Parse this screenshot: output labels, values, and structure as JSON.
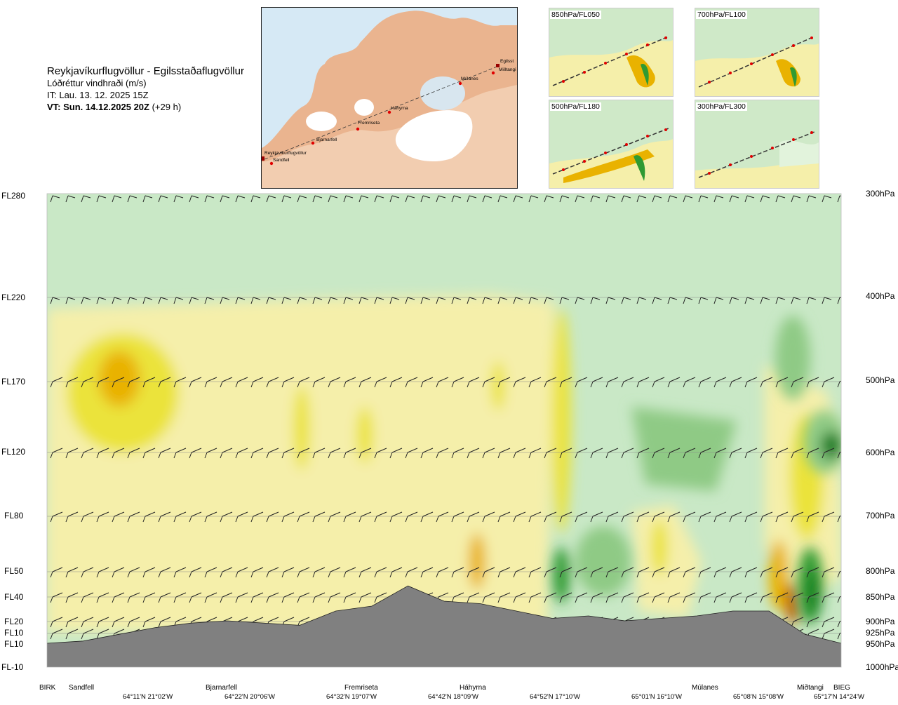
{
  "title": {
    "route": "Reykjavíkurflugvöllur - Egilsstaðaflugvöllur",
    "variable": "Lóðréttur vindhraði (m/s)",
    "it": "IT: Lau. 13. 12. 2025 15Z",
    "vt_bold": "VT: Sun. 14.12.2025 20Z",
    "vt_offset": "(+29 h)"
  },
  "map": {
    "labels": [
      "Egilsst",
      "Miðtangi",
      "Múlanes",
      "Háhyrna",
      "Fremriseta",
      "Bjarnarfell",
      "Reykjavíkurflugvöllur",
      "Sandfell"
    ]
  },
  "thumbnails": [
    {
      "label": "850hPa/FL050"
    },
    {
      "label": "700hPa/FL100"
    },
    {
      "label": "500hPa/FL180"
    },
    {
      "label": "300hPa/FL300"
    }
  ],
  "colors": {
    "terrain": "#808080",
    "positive_weak": "#f5efaa",
    "positive_mid": "#ebe33a",
    "positive_strong": "#e9b200",
    "positive_max": "#c46a10",
    "negative_weak": "#cfe9c8",
    "negative_mid": "#8fca85",
    "negative_strong": "#2f9a32",
    "negative_max": "#0e7a1c",
    "background": "#c9e8c6"
  },
  "chart_data": {
    "type": "heatmap",
    "title": "Lóðréttur vindhraði (m/s)",
    "flight_levels": [
      "FL280",
      "FL220",
      "FL170",
      "FL120",
      "FL80",
      "FL50",
      "FL40",
      "FL20",
      "FL10",
      "FL10",
      "FL-10"
    ],
    "pressure_levels": [
      "300hPa",
      "400hPa",
      "500hPa",
      "600hPa",
      "700hPa",
      "800hPa",
      "850hPa",
      "900hPa",
      "925hPa",
      "950hPa",
      "1000hPa"
    ],
    "pressure_hpa": [
      300,
      400,
      500,
      600,
      700,
      800,
      850,
      900,
      925,
      950,
      1000
    ],
    "waypoints": [
      "BIRK",
      "Sandfell",
      "Bjarnarfell",
      "Fremriseta",
      "Háhyrna",
      "Múlanes",
      "Miðtangi",
      "BIEG"
    ],
    "coordinates": [
      "64°11'N 21°02'W",
      "64°22'N 20°06'W",
      "64°32'N 19°07'W",
      "64°42'N 18°09'W",
      "64°52'N 17°10'W",
      "65°01'N 16°10'W",
      "65°08'N 15°08'W",
      "65°17'N 14°24'W"
    ],
    "series": [
      {
        "name": "terrain",
        "values": [
          950,
          945,
          930,
          915,
          905,
          900,
          905,
          910,
          880,
          870,
          830,
          860,
          865,
          880,
          895,
          890,
          900,
          895,
          890,
          880,
          880,
          930,
          950
        ]
      }
    ],
    "grid": true
  }
}
